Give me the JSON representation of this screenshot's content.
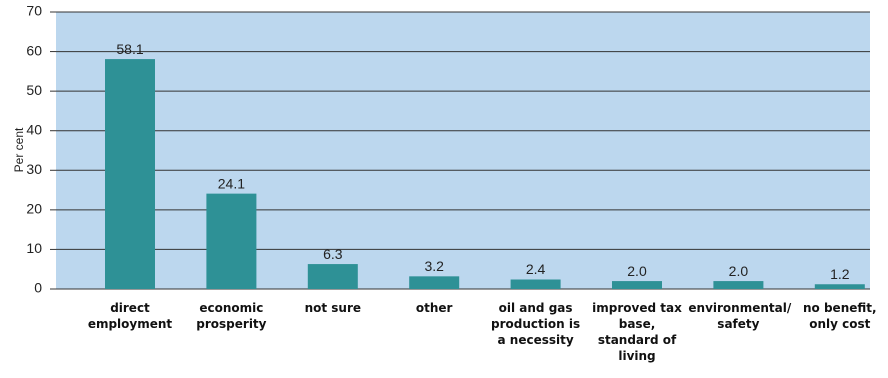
{
  "chart_data": {
    "type": "bar",
    "y_label": "Per cent",
    "categories": [
      "direct employment",
      "economic prosperity",
      "not sure",
      "other",
      "oil and gas production is a necessity",
      "improved tax base, standard of living",
      "environmental/ safety",
      "no benefit, only cost"
    ],
    "values": [
      58.1,
      24.1,
      6.3,
      3.2,
      2.4,
      2.0,
      2.0,
      1.2
    ],
    "value_labels": [
      "58.1",
      "24.1",
      "6.3",
      "3.2",
      "2.4",
      "2.0",
      "2.0",
      "1.2"
    ],
    "color": "#2e9196",
    "background": "#bcd7ee",
    "ylim": [
      0,
      70
    ],
    "yticks": [
      0,
      10,
      20,
      30,
      40,
      50,
      60,
      70
    ],
    "grid": true
  }
}
